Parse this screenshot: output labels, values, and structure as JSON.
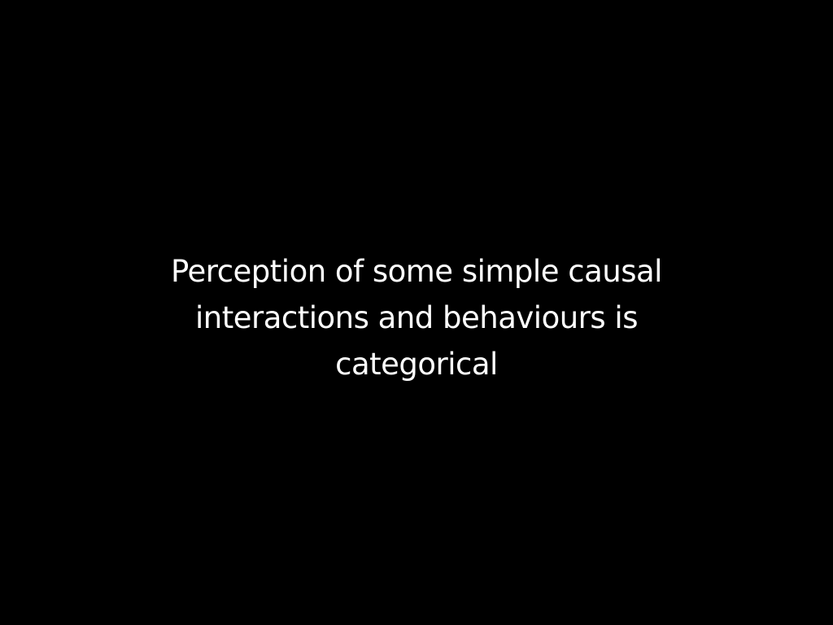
{
  "slide": {
    "background_color": "#000000",
    "text_color": "#ffffff",
    "title_lines": [
      "Perception of some simple causal",
      "interactions and behaviours is",
      "categorical"
    ]
  }
}
